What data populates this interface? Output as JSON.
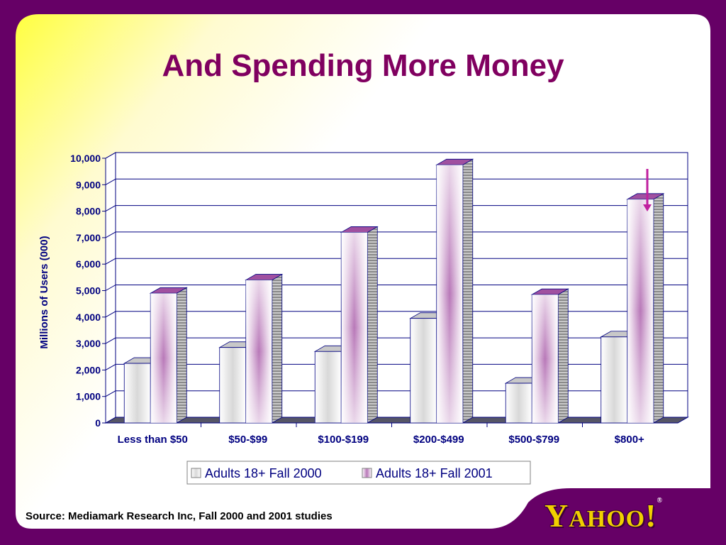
{
  "slide": {
    "title": "And Spending More Money",
    "source": "Source: Mediamark Research Inc, Fall 2000 and 2001 studies",
    "logo_text": "YAHOO!",
    "colors": {
      "frame": "#660066",
      "title": "#800060",
      "axis_text": "#000080",
      "accent": "#c0209f",
      "logo": "#f0d000"
    }
  },
  "chart_data": {
    "type": "bar",
    "ylabel": "Millions of Users (000)",
    "ylim": [
      0,
      10000
    ],
    "yticks": [
      "0",
      "1,000",
      "2,000",
      "3,000",
      "4,000",
      "5,000",
      "6,000",
      "7,000",
      "8,000",
      "9,000",
      "10,000"
    ],
    "categories": [
      "Less than $50",
      "$50-$99",
      "$100-$199",
      "$200-$499",
      "$500-$799",
      "$800+"
    ],
    "series": [
      {
        "name": "Adults 18+ Fall 2000",
        "values": [
          2250,
          2850,
          2700,
          3950,
          1500,
          3250
        ],
        "color": "#e8e8e8"
      },
      {
        "name": "Adults 18+ Fall 2001",
        "values": [
          4900,
          5400,
          7200,
          9750,
          4850,
          8450
        ],
        "color": "#b060b0"
      }
    ],
    "grid": true,
    "legend": "bottom",
    "annotation": "arrow-pointing-down-at-800-plus-2001"
  }
}
